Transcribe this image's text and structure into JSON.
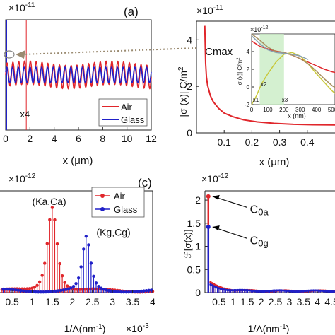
{
  "chart_data": [
    {
      "type": "line",
      "panel_label": "(a)",
      "multiplier": "×10",
      "multiplier_exp": "-11",
      "xlabel": "x (μm)",
      "xlim": [
        0,
        12
      ],
      "ylim": [
        0,
        1
      ],
      "xticks": [
        0,
        2,
        4,
        6,
        8,
        10,
        12
      ],
      "marker_line": {
        "x": 1.7,
        "label": "x4"
      },
      "series": [
        {
          "name": "Air",
          "color": "#e0262b",
          "mean": 0.5,
          "amplitude": 0.105,
          "period": 0.48
        },
        {
          "name": "Glass",
          "color": "#2020c8",
          "mean": 0.5,
          "amplitude": 0.07,
          "period": 0.48
        }
      ]
    },
    {
      "type": "line",
      "multiplier": "×10",
      "multiplier_exp": "-11",
      "ylabel": "|σ (x)| C/m",
      "ylabel_exp": "2",
      "xlabel": "x (μm)",
      "xlim": [
        0,
        0.5
      ],
      "ylim": [
        0,
        4.8
      ],
      "xticks": [
        0.1,
        0.2,
        0.3,
        0.4
      ],
      "yticks": [
        0,
        2,
        4
      ],
      "annotation": "Cmax",
      "series": [
        {
          "name": "Air",
          "color": "#e0262b",
          "points": [
            [
              0.03,
              4.6
            ],
            [
              0.033,
              3.0
            ],
            [
              0.036,
              2.4
            ],
            [
              0.04,
              2.05
            ],
            [
              0.05,
              1.6
            ],
            [
              0.06,
              1.35
            ],
            [
              0.08,
              1.05
            ],
            [
              0.1,
              0.85
            ],
            [
              0.13,
              0.7
            ],
            [
              0.17,
              0.56
            ],
            [
              0.22,
              0.47
            ],
            [
              0.28,
              0.41
            ],
            [
              0.35,
              0.37
            ],
            [
              0.42,
              0.35
            ],
            [
              0.5,
              0.34
            ]
          ]
        }
      ],
      "inset": {
        "multiplier": "×10",
        "multiplier_exp": "-12",
        "ylabel": "|σ (x)| C/m",
        "ylabel_exp": "2",
        "xlabel": "x (nm)",
        "xlim": [
          0,
          550
        ],
        "ylim": [
          -2,
          6
        ],
        "xticks": [
          0,
          100,
          200,
          300,
          400,
          500
        ],
        "xtick_labels": [
          "0",
          "100",
          "200",
          "300",
          "400",
          "500"
        ],
        "yticks": [
          -2,
          0,
          2,
          4
        ],
        "band": [
          50,
          200
        ],
        "labels": [
          "x1",
          "x2",
          "x3"
        ],
        "series": [
          {
            "color": "#e0262b",
            "points": [
              [
                0,
                5.2
              ],
              [
                50,
                4.6
              ],
              [
                100,
                4.3
              ],
              [
                150,
                4.05
              ],
              [
                200,
                3.9
              ],
              [
                250,
                3.6
              ],
              [
                300,
                3.2
              ],
              [
                350,
                2.8
              ],
              [
                400,
                2.4
              ],
              [
                450,
                2.0
              ],
              [
                500,
                1.7
              ],
              [
                550,
                1.5
              ]
            ]
          },
          {
            "color": "#c8c83a",
            "points": [
              [
                0,
                -2.0
              ],
              [
                30,
                -1.0
              ],
              [
                60,
                0.3
              ],
              [
                100,
                1.5
              ],
              [
                150,
                2.8
              ],
              [
                200,
                3.7
              ],
              [
                250,
                3.9
              ],
              [
                300,
                3.5
              ],
              [
                350,
                2.6
              ],
              [
                400,
                1.5
              ],
              [
                450,
                0.5
              ],
              [
                500,
                -0.5
              ],
              [
                550,
                -1.2
              ]
            ]
          },
          {
            "color": "#a89060",
            "points": [
              [
                0,
                6.0
              ],
              [
                50,
                5.3
              ],
              [
                100,
                4.5
              ],
              [
                150,
                4.0
              ],
              [
                200,
                3.9
              ],
              [
                250,
                3.6
              ],
              [
                300,
                3.2
              ],
              [
                350,
                2.6
              ],
              [
                400,
                1.8
              ],
              [
                450,
                0.9
              ],
              [
                500,
                0.1
              ],
              [
                550,
                -0.4
              ]
            ]
          },
          {
            "color": "#8aa0b0",
            "points": [
              [
                0,
                5.8
              ],
              [
                50,
                4.9
              ],
              [
                100,
                4.2
              ],
              [
                150,
                3.9
              ],
              [
                200,
                3.8
              ],
              [
                250,
                3.7
              ],
              [
                300,
                3.5
              ],
              [
                350,
                3.1
              ]
            ]
          }
        ]
      }
    },
    {
      "type": "stem",
      "panel_label": "(c)",
      "multiplier": "×10",
      "multiplier_exp": "-12",
      "xmultiplier": "×10",
      "xmultiplier_exp": "-3",
      "xlabel": "1/Λ(nm",
      "xlabel_exp": "-1",
      "xlabel_end": ")",
      "xlim": [
        0.2,
        4.0
      ],
      "ylim": [
        0,
        1.0
      ],
      "xticks": [
        0.5,
        1,
        1.5,
        2,
        2.5,
        3,
        3.5,
        4
      ],
      "xtick_labels": [
        "0.5",
        "1",
        "1.5",
        "2",
        "2.5",
        "3",
        "3.5",
        "4"
      ],
      "annotations": [
        {
          "text": "(Ka,Ca)",
          "x": 1.0,
          "y": 0.86
        },
        {
          "text": "(Kg,Cg)",
          "x": 2.6,
          "y": 0.56
        }
      ],
      "series": [
        {
          "name": "Air",
          "color": "#e0262b",
          "peak_x": 1.5,
          "peak_y": 0.83,
          "start": 0.25,
          "step": 0.0625,
          "end": 4.0
        },
        {
          "name": "Glass",
          "color": "#2020c8",
          "peak_x": 2.35,
          "peak_y": 0.52,
          "start": 0.28,
          "step": 0.0625,
          "end": 4.0
        }
      ]
    },
    {
      "type": "stem",
      "multiplier": "×10",
      "multiplier_exp": "-12",
      "ylabel": "ℱ[σ(x)]",
      "xlabel": "1/Λ(nm",
      "xlabel_exp": "-1",
      "xlabel_end": ")",
      "xlim": [
        0,
        5
      ],
      "ylim": [
        0,
        2.2
      ],
      "xticks": [
        0.5,
        1,
        1.5,
        2,
        2.5,
        3,
        3.5,
        4,
        4.5
      ],
      "xtick_labels": [
        "0.5",
        "1",
        "1.5",
        "2",
        "2.5",
        "3",
        "3.5",
        "4",
        "4.5"
      ],
      "yticks": [
        0,
        0.5,
        1,
        1.5,
        2
      ],
      "ytick_labels": [
        "0",
        "0.5",
        "1",
        "1.5",
        "2"
      ],
      "annotations": [
        {
          "text": "C",
          "sub": "0a",
          "x": 1.6,
          "y": 1.72,
          "target_x": 0.12,
          "target_y": 2.08
        },
        {
          "text": "C",
          "sub": "0g",
          "x": 1.6,
          "y": 1.05,
          "target_x": 0.12,
          "target_y": 1.42
        }
      ],
      "series": [
        {
          "name": "Air",
          "color": "#e0262b",
          "peak_y": 2.08
        },
        {
          "name": "Glass",
          "color": "#2020c8",
          "peak_y": 1.42
        }
      ]
    }
  ]
}
